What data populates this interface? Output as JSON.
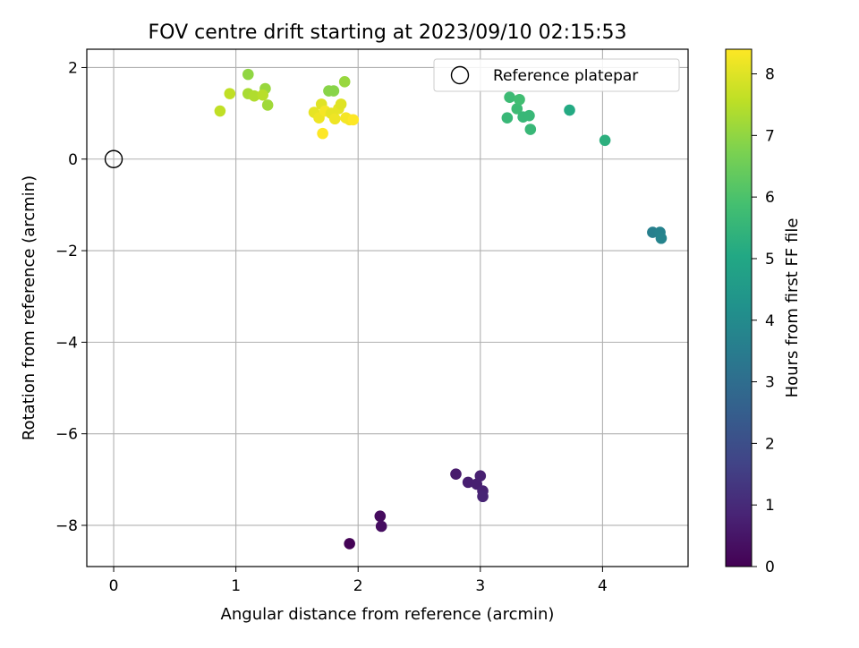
{
  "chart_data": {
    "type": "scatter",
    "title": "FOV centre drift starting at 2023/09/10 02:15:53",
    "xlabel": "Angular distance from reference (arcmin)",
    "ylabel": "Rotation from reference (arcmin)",
    "xlim": [
      -0.22,
      4.7
    ],
    "ylim": [
      -8.9,
      2.4
    ],
    "xticks": [
      0,
      1,
      2,
      3,
      4
    ],
    "xtick_labels": [
      "0",
      "1",
      "2",
      "3",
      "4"
    ],
    "yticks": [
      -8,
      -6,
      -4,
      -2,
      0,
      2
    ],
    "ytick_labels": [
      "−8",
      "−6",
      "−4",
      "−2",
      "0",
      "2"
    ],
    "grid": true,
    "colormap": "viridis",
    "colorbar": {
      "label": "Hours from first FF file",
      "range": [
        0,
        8.4
      ],
      "ticks": [
        0,
        1,
        2,
        3,
        4,
        5,
        6,
        7,
        8
      ],
      "tick_labels": [
        "0",
        "1",
        "2",
        "3",
        "4",
        "5",
        "6",
        "7",
        "8"
      ]
    },
    "legend": {
      "position": "top-right",
      "entries": [
        "Reference platepar"
      ]
    },
    "reference_point": {
      "x": 0,
      "y": 0,
      "label": "Reference platepar"
    },
    "points": [
      {
        "x": 1.93,
        "y": -8.4,
        "t": 0.05
      },
      {
        "x": 2.18,
        "y": -7.8,
        "t": 0.25
      },
      {
        "x": 2.19,
        "y": -8.02,
        "t": 0.3
      },
      {
        "x": 2.8,
        "y": -6.88,
        "t": 0.6
      },
      {
        "x": 2.9,
        "y": -7.06,
        "t": 0.7
      },
      {
        "x": 2.97,
        "y": -7.1,
        "t": 0.72
      },
      {
        "x": 3.0,
        "y": -6.92,
        "t": 0.75
      },
      {
        "x": 3.02,
        "y": -7.25,
        "t": 0.8
      },
      {
        "x": 3.02,
        "y": -7.37,
        "t": 0.85
      },
      {
        "x": 4.41,
        "y": -1.6,
        "t": 3.6
      },
      {
        "x": 4.47,
        "y": -1.6,
        "t": 3.7
      },
      {
        "x": 4.48,
        "y": -1.73,
        "t": 3.75
      },
      {
        "x": 4.02,
        "y": 0.41,
        "t": 5.3
      },
      {
        "x": 3.73,
        "y": 1.07,
        "t": 5.1
      },
      {
        "x": 3.22,
        "y": 0.9,
        "t": 5.6
      },
      {
        "x": 3.24,
        "y": 1.35,
        "t": 5.7
      },
      {
        "x": 3.3,
        "y": 1.1,
        "t": 5.7
      },
      {
        "x": 3.32,
        "y": 1.3,
        "t": 5.8
      },
      {
        "x": 3.35,
        "y": 0.92,
        "t": 5.6
      },
      {
        "x": 3.4,
        "y": 0.95,
        "t": 5.6
      },
      {
        "x": 3.41,
        "y": 0.65,
        "t": 5.6
      },
      {
        "x": 1.1,
        "y": 1.85,
        "t": 7.0
      },
      {
        "x": 1.24,
        "y": 1.54,
        "t": 7.1
      },
      {
        "x": 1.26,
        "y": 1.18,
        "t": 7.2
      },
      {
        "x": 1.1,
        "y": 1.43,
        "t": 7.3
      },
      {
        "x": 1.15,
        "y": 1.38,
        "t": 7.4
      },
      {
        "x": 1.22,
        "y": 1.4,
        "t": 7.5
      },
      {
        "x": 0.95,
        "y": 1.43,
        "t": 7.6
      },
      {
        "x": 0.87,
        "y": 1.05,
        "t": 7.6
      },
      {
        "x": 1.76,
        "y": 1.49,
        "t": 6.9
      },
      {
        "x": 1.8,
        "y": 1.49,
        "t": 6.9
      },
      {
        "x": 1.89,
        "y": 1.69,
        "t": 7.1
      },
      {
        "x": 1.64,
        "y": 1.02,
        "t": 8.1
      },
      {
        "x": 1.68,
        "y": 0.9,
        "t": 8.2
      },
      {
        "x": 1.7,
        "y": 1.2,
        "t": 8.0
      },
      {
        "x": 1.73,
        "y": 1.05,
        "t": 8.3
      },
      {
        "x": 1.78,
        "y": 1.0,
        "t": 8.1
      },
      {
        "x": 1.81,
        "y": 0.88,
        "t": 8.2
      },
      {
        "x": 1.84,
        "y": 1.1,
        "t": 8.1
      },
      {
        "x": 1.86,
        "y": 1.2,
        "t": 8.0
      },
      {
        "x": 1.9,
        "y": 0.9,
        "t": 8.3
      },
      {
        "x": 1.93,
        "y": 0.86,
        "t": 8.3
      },
      {
        "x": 1.96,
        "y": 0.86,
        "t": 8.4
      },
      {
        "x": 1.71,
        "y": 0.56,
        "t": 8.4
      }
    ]
  }
}
